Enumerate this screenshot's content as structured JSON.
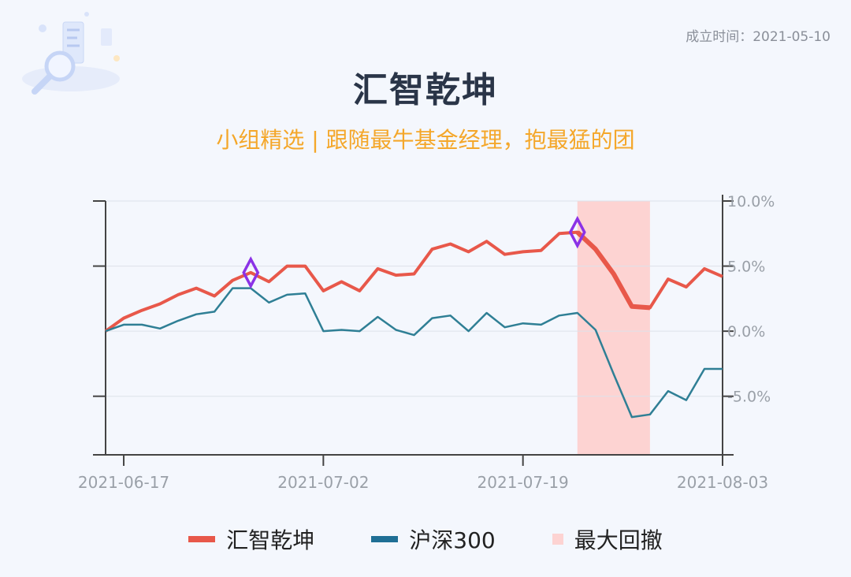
{
  "header": {
    "founded": "成立时间：2021-05-10",
    "title": "汇智乾坤",
    "subtitle": "小组精选 | 跟随最牛基金经理，抱最猛的团"
  },
  "colors": {
    "fund": "#e8584a",
    "index": "#2f7f95",
    "drawdown": "#fdd3d2",
    "marker": "#8b32e6"
  },
  "chart_data": {
    "type": "line",
    "title": "",
    "xlabel": "",
    "ylabel": "",
    "ylim": [
      -9.5,
      10
    ],
    "yticks": [
      {
        "value": 10,
        "label": "10.0%"
      },
      {
        "value": 5,
        "label": "5.0%"
      },
      {
        "value": 0,
        "label": "0.0%"
      },
      {
        "value": -5,
        "label": "-5.0%"
      }
    ],
    "xticks": [
      {
        "index": 1,
        "label": "2021-06-17"
      },
      {
        "index": 12,
        "label": "2021-07-02"
      },
      {
        "index": 23,
        "label": "2021-07-19"
      },
      {
        "index": 34,
        "label": "2021-08-03"
      }
    ],
    "series": [
      {
        "name": "汇智乾坤",
        "values": [
          0.0,
          1.0,
          1.6,
          2.1,
          2.8,
          3.3,
          2.7,
          3.9,
          4.5,
          3.8,
          5.0,
          5.0,
          3.1,
          3.8,
          3.1,
          4.8,
          4.3,
          4.4,
          6.3,
          6.7,
          6.1,
          6.9,
          5.9,
          6.1,
          6.2,
          7.5,
          7.6,
          6.3,
          4.4,
          1.9,
          1.8,
          4.0,
          3.4,
          4.8,
          4.2
        ]
      },
      {
        "name": "沪深300",
        "values": [
          0.0,
          0.5,
          0.5,
          0.2,
          0.8,
          1.3,
          1.5,
          3.3,
          3.3,
          2.2,
          2.8,
          2.9,
          0.0,
          0.1,
          0.0,
          1.1,
          0.1,
          -0.3,
          1.0,
          1.2,
          0.0,
          1.4,
          0.3,
          0.6,
          0.5,
          1.2,
          1.4,
          0.1,
          -3.3,
          -6.6,
          -6.4,
          -4.6,
          -5.3,
          -2.9,
          -2.9
        ]
      }
    ],
    "drawdown": {
      "name": "最大回撤",
      "start_index": 26,
      "end_index": 30
    },
    "markers": [
      {
        "index": 8
      },
      {
        "index": 26
      }
    ],
    "legend": "bottom"
  }
}
